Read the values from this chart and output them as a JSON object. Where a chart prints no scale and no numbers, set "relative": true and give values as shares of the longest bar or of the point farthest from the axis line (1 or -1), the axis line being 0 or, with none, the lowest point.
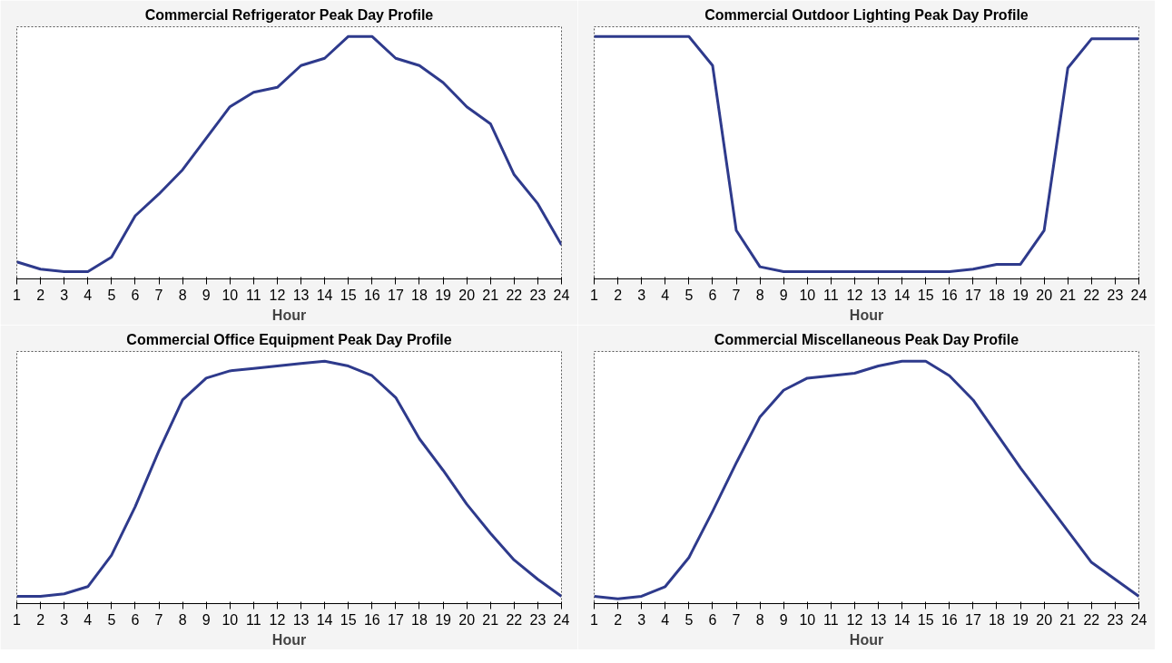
{
  "chart_data": [
    {
      "type": "line",
      "title": "Commercial Refrigerator Peak Day Profile",
      "xlabel": "Hour",
      "relative": true,
      "tick_labels": "x",
      "grid": false,
      "line_style": "solid",
      "xlim": [
        1,
        24
      ],
      "xticks": [
        1,
        2,
        3,
        4,
        5,
        6,
        7,
        8,
        9,
        10,
        11,
        12,
        13,
        14,
        15,
        16,
        17,
        18,
        19,
        20,
        21,
        22,
        23,
        24
      ],
      "x": [
        1,
        2,
        3,
        4,
        5,
        6,
        7,
        8,
        9,
        10,
        11,
        12,
        13,
        14,
        15,
        16,
        17,
        18,
        19,
        20,
        21,
        22,
        23,
        24
      ],
      "series": [
        {
          "color": "#2e3a8c",
          "values": [
            0.07,
            0.04,
            0.03,
            0.03,
            0.09,
            0.26,
            0.35,
            0.45,
            0.58,
            0.71,
            0.77,
            0.79,
            0.88,
            0.91,
            1.0,
            1.0,
            0.91,
            0.88,
            0.81,
            0.71,
            0.64,
            0.43,
            0.31,
            0.14
          ]
        }
      ]
    },
    {
      "type": "line",
      "title": "Commercial Outdoor Lighting Peak Day Profile",
      "xlabel": "Hour",
      "relative": true,
      "tick_labels": "x",
      "grid": false,
      "line_style": "solid",
      "xlim": [
        1,
        24
      ],
      "xticks": [
        1,
        2,
        3,
        4,
        5,
        6,
        7,
        8,
        9,
        10,
        11,
        12,
        13,
        14,
        15,
        16,
        17,
        18,
        19,
        20,
        21,
        22,
        23,
        24
      ],
      "x": [
        1,
        2,
        3,
        4,
        5,
        6,
        7,
        8,
        9,
        10,
        11,
        12,
        13,
        14,
        15,
        16,
        17,
        18,
        19,
        20,
        21,
        22,
        23,
        24
      ],
      "series": [
        {
          "color": "#2e3a8c",
          "values": [
            1.0,
            1.0,
            1.0,
            1.0,
            1.0,
            0.88,
            0.2,
            0.05,
            0.03,
            0.03,
            0.03,
            0.03,
            0.03,
            0.03,
            0.03,
            0.03,
            0.04,
            0.06,
            0.06,
            0.2,
            0.87,
            0.99,
            0.99,
            0.99
          ]
        }
      ]
    },
    {
      "type": "line",
      "title": "Commercial Office Equipment Peak Day Profile",
      "xlabel": "Hour",
      "relative": true,
      "tick_labels": "x",
      "grid": false,
      "line_style": "solid",
      "xlim": [
        1,
        24
      ],
      "xticks": [
        1,
        2,
        3,
        4,
        5,
        6,
        7,
        8,
        9,
        10,
        11,
        12,
        13,
        14,
        15,
        16,
        17,
        18,
        19,
        20,
        21,
        22,
        23,
        24
      ],
      "x": [
        1,
        2,
        3,
        4,
        5,
        6,
        7,
        8,
        9,
        10,
        11,
        12,
        13,
        14,
        15,
        16,
        17,
        18,
        19,
        20,
        21,
        22,
        23,
        24
      ],
      "series": [
        {
          "color": "#2e3a8c",
          "values": [
            0.03,
            0.03,
            0.04,
            0.07,
            0.2,
            0.4,
            0.63,
            0.84,
            0.93,
            0.96,
            0.97,
            0.98,
            0.99,
            1.0,
            0.98,
            0.94,
            0.85,
            0.68,
            0.55,
            0.41,
            0.29,
            0.18,
            0.1,
            0.03
          ]
        }
      ]
    },
    {
      "type": "line",
      "title": "Commercial Miscellaneous Peak Day Profile",
      "xlabel": "Hour",
      "relative": true,
      "tick_labels": "x",
      "grid": false,
      "line_style": "solid",
      "xlim": [
        1,
        24
      ],
      "xticks": [
        1,
        2,
        3,
        4,
        5,
        6,
        7,
        8,
        9,
        10,
        11,
        12,
        13,
        14,
        15,
        16,
        17,
        18,
        19,
        20,
        21,
        22,
        23,
        24
      ],
      "x": [
        1,
        2,
        3,
        4,
        5,
        6,
        7,
        8,
        9,
        10,
        11,
        12,
        13,
        14,
        15,
        16,
        17,
        18,
        19,
        20,
        21,
        22,
        23,
        24
      ],
      "series": [
        {
          "color": "#2e3a8c",
          "values": [
            0.03,
            0.02,
            0.03,
            0.07,
            0.19,
            0.38,
            0.58,
            0.77,
            0.88,
            0.93,
            0.94,
            0.95,
            0.98,
            1.0,
            1.0,
            0.94,
            0.84,
            0.7,
            0.56,
            0.43,
            0.3,
            0.17,
            0.1,
            0.03
          ]
        }
      ]
    }
  ]
}
